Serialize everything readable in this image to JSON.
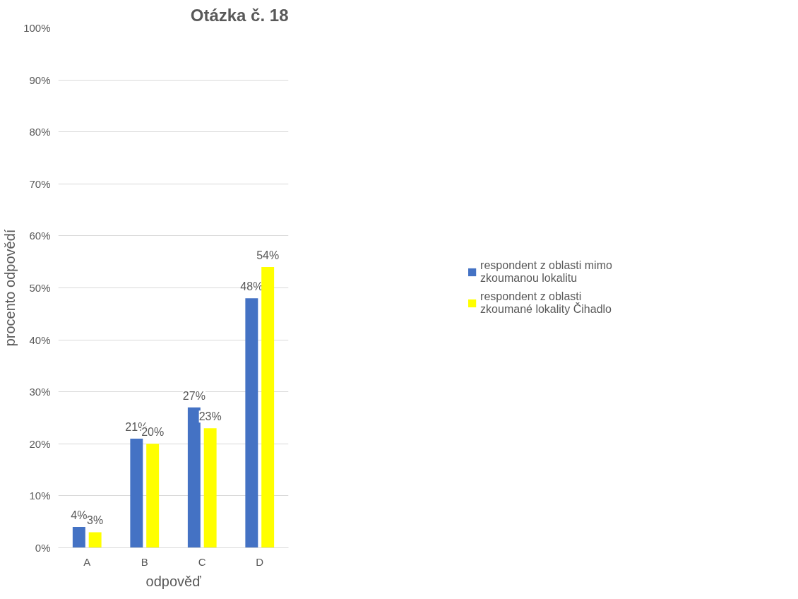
{
  "chart_data": {
    "type": "bar",
    "title": "Otázka č. 18",
    "xlabel": "odpověď",
    "ylabel": "procento odpovědí",
    "categories": [
      "A",
      "B",
      "C",
      "D"
    ],
    "series": [
      {
        "name": "respondent z oblasti mimo zkoumanou lokalitu",
        "color": "#4472c4",
        "values": [
          4,
          21,
          27,
          48
        ],
        "value_labels": [
          "4%",
          "21%",
          "27%",
          "48%"
        ]
      },
      {
        "name": "respondent z oblasti zkoumané lokality Čihadlo",
        "color": "#ffff00",
        "values": [
          3,
          20,
          23,
          54
        ],
        "value_labels": [
          "3%",
          "20%",
          "23%",
          "54%"
        ]
      }
    ],
    "ylim": [
      0,
      100
    ],
    "yticks": [
      {
        "value": 0,
        "label": "0%"
      },
      {
        "value": 10,
        "label": "10%"
      },
      {
        "value": 20,
        "label": "20%"
      },
      {
        "value": 30,
        "label": "30%"
      },
      {
        "value": 40,
        "label": "40%"
      },
      {
        "value": 50,
        "label": "50%"
      },
      {
        "value": 60,
        "label": "60%"
      },
      {
        "value": 70,
        "label": "70%"
      },
      {
        "value": 80,
        "label": "80%"
      },
      {
        "value": 90,
        "label": "90%"
      },
      {
        "value": 100,
        "label": "100%"
      }
    ],
    "grid": "y",
    "legend": "right"
  }
}
